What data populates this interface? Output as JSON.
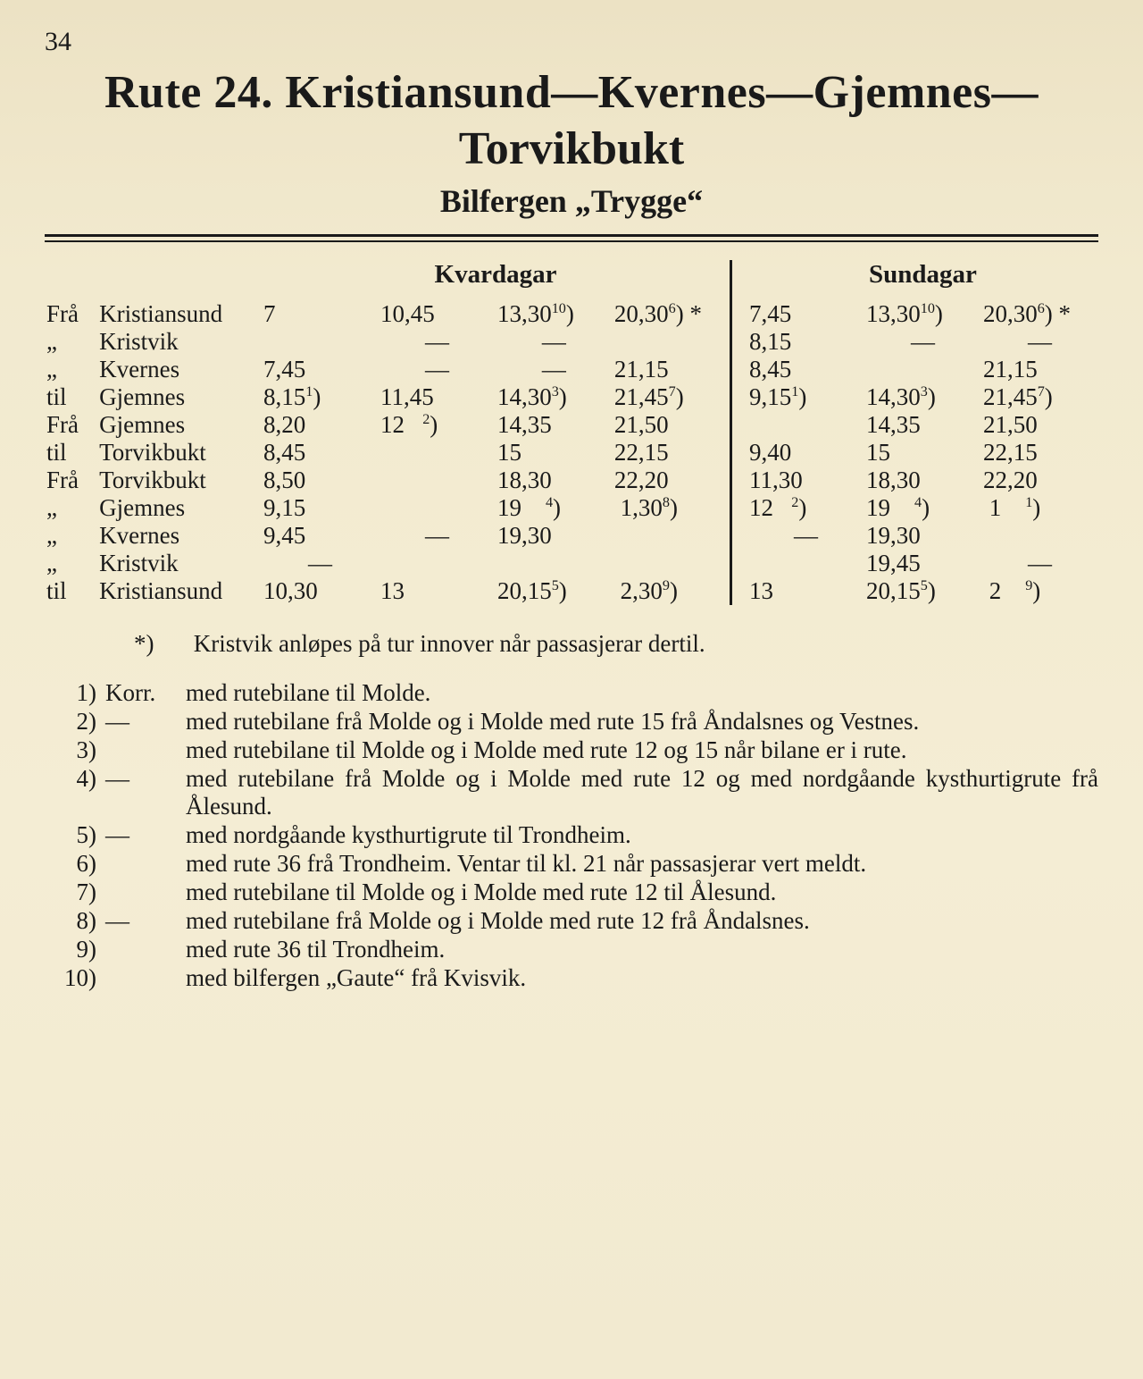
{
  "page_number": "34",
  "title_line1": "Rute 24.  Kristiansund—Kvernes—Gjemnes—",
  "title_line2": "Torvikbukt",
  "subtitle": "Bilfergen  „Trygge“",
  "headers": {
    "weekdays": "Kvardagar",
    "sundays": "Sundagar"
  },
  "rows": [
    {
      "prefix": "Frå",
      "station": "Kristiansund",
      "w": [
        "7",
        "10,45",
        "13,30<sup>10</sup>)",
        "20,30<sup>6</sup>) *"
      ],
      "s": [
        "7,45",
        "13,30<sup>10</sup>)",
        "20,30<sup>6</sup>) *"
      ]
    },
    {
      "prefix": "„",
      "station": "Kristvik",
      "ditto": true,
      "w": [
        "",
        "—",
        "—",
        ""
      ],
      "s": [
        "8,15",
        "—",
        "—"
      ]
    },
    {
      "prefix": "„",
      "station": "Kvernes",
      "ditto": true,
      "w": [
        "7,45",
        "—",
        "—",
        "21,15"
      ],
      "s": [
        "8,45",
        "",
        "21,15"
      ]
    },
    {
      "prefix": "til",
      "station": "Gjemnes",
      "w": [
        "8,15<sup>1</sup>)",
        "11,45",
        "14,30<sup>3</sup>)",
        "21,45<sup>7</sup>)"
      ],
      "s": [
        "9,15<sup>1</sup>)",
        "14,30<sup>3</sup>)",
        "21,45<sup>7</sup>)"
      ]
    },
    {
      "prefix": "Frå",
      "station": "Gjemnes",
      "w": [
        "8,20",
        "12&nbsp;&nbsp;&nbsp;<sup>2</sup>)",
        "14,35",
        "21,50"
      ],
      "s": [
        "",
        "14,35",
        "21,50"
      ]
    },
    {
      "prefix": "til",
      "station": "Torvikbukt",
      "w": [
        "8,45",
        "",
        "15",
        "22,15"
      ],
      "s": [
        "9,40",
        "15",
        "22,15"
      ]
    },
    {
      "prefix": "Frå",
      "station": "Torvikbukt",
      "w": [
        "8,50",
        "",
        "18,30",
        "22,20"
      ],
      "s": [
        "11,30",
        "18,30",
        "22,20"
      ]
    },
    {
      "prefix": "„",
      "station": "Gjemnes",
      "ditto": true,
      "w": [
        "9,15",
        "",
        "19&nbsp;&nbsp;&nbsp;&nbsp;<sup>4</sup>)",
        "&nbsp;1,30<sup>8</sup>)"
      ],
      "s": [
        "12&nbsp;&nbsp;&nbsp;<sup>2</sup>)",
        "19&nbsp;&nbsp;&nbsp;&nbsp;<sup>4</sup>)",
        "&nbsp;1&nbsp;&nbsp;&nbsp;&nbsp;<sup>1</sup>)"
      ]
    },
    {
      "prefix": "„",
      "station": "Kvernes",
      "ditto": true,
      "w": [
        "9,45",
        "—",
        "19,30",
        ""
      ],
      "s": [
        "—",
        "19,30",
        ""
      ]
    },
    {
      "prefix": "„",
      "station": "Kristvik",
      "ditto": true,
      "w": [
        "—",
        "",
        "",
        ""
      ],
      "s": [
        "",
        "19,45",
        "—"
      ]
    },
    {
      "prefix": "til",
      "station": "Kristiansund",
      "w": [
        "10,30",
        "13",
        "20,15<sup>5</sup>)",
        "&nbsp;2,30<sup>9</sup>)"
      ],
      "s": [
        "13",
        "20,15<sup>5</sup>)",
        "&nbsp;2&nbsp;&nbsp;&nbsp;&nbsp;<sup>9</sup>)"
      ]
    }
  ],
  "asterisk_note": {
    "marker": "*)",
    "text": "Kristvik anløpes på tur innover når passasjerar dertil."
  },
  "footnotes": [
    {
      "num": "1)",
      "lead": "Korr.",
      "text": "med rutebilane til Molde."
    },
    {
      "num": "2)",
      "lead": "—",
      "text": "med rutebilane frå Molde og i Molde med rute 15 frå Åndalsnes og Vestnes."
    },
    {
      "num": "3)",
      "lead": "",
      "text": "med rutebilane til Molde og i Molde med rute 12 og 15 når bilane er i rute."
    },
    {
      "num": "4)",
      "lead": "—",
      "text": "med rutebilane frå Molde og i Molde med rute 12 og med nordgåande kysthurtigrute frå Ålesund."
    },
    {
      "num": "5)",
      "lead": "—",
      "text": "med nordgåande kysthurtigrute til Trondheim."
    },
    {
      "num": "6)",
      "lead": "",
      "text": "med rute 36 frå Trondheim. Ventar til kl. 21 når passasjerar vert meldt."
    },
    {
      "num": "7)",
      "lead": "",
      "text": "med rutebilane til Molde og i Molde med rute 12 til Ålesund."
    },
    {
      "num": "8)",
      "lead": "—",
      "text": "med rutebilane frå Molde og i Molde med rute 12 frå Åndalsnes."
    },
    {
      "num": "9)",
      "lead": "",
      "text": "med rute 36 til Trondheim."
    },
    {
      "num": "10)",
      "lead": "",
      "text": "med bilfergen „Gaute“ frå Kvisvik."
    }
  ],
  "colors": {
    "paper": "#f2eacf",
    "ink": "#1a1a1a"
  }
}
